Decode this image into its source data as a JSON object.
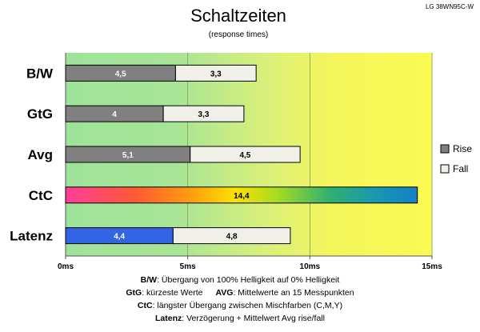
{
  "model": "LG 38WN95C-W",
  "chart_data": {
    "type": "bar",
    "orientation": "horizontal",
    "stacked": true,
    "title": "Schaltzeiten",
    "subtitle": "(response times)",
    "categories": [
      "B/W",
      "GtG",
      "Avg",
      "CtC",
      "Latenz"
    ],
    "series": [
      {
        "name": "Rise",
        "color": "#808080",
        "values": [
          4.5,
          4,
          5.1,
          14.4,
          4.4
        ],
        "labels": [
          "4,5",
          "4",
          "5,1",
          "14,4",
          "4,4"
        ]
      },
      {
        "name": "Fall",
        "color": "#f0efe8",
        "values": [
          3.3,
          3.3,
          4.5,
          0,
          4.8
        ],
        "labels": [
          "3,3",
          "3,3",
          "4,5",
          "",
          "4,8"
        ]
      }
    ],
    "special_bars": {
      "CtC": "rainbow",
      "Latenz": "blue"
    },
    "xlim": [
      0,
      15
    ],
    "xticks": [
      0,
      5,
      10,
      15
    ],
    "xtick_labels": [
      "0ms",
      "5ms",
      "10ms",
      "15ms"
    ],
    "legend_position": "right",
    "grid": true,
    "background": "green-to-yellow gradient"
  },
  "footnotes": {
    "bw_key": "B/W",
    "bw_text": ":  Übergang von 100% Helligkeit auf 0% Helligkeit",
    "gtg_key": "GtG",
    "gtg_text": ": kürzeste  Werte",
    "avg_key": "AVG",
    "avg_text": ": Mittelwerte  an 15 Messpunkten",
    "ctc_key": "CtC",
    "ctc_text": ": längster Übergang  zwischen Mischfarben (C,M,Y)",
    "latenz_key": "Latenz",
    "latenz_text": ": Verzögerung  + Mittelwert Avg rise/fall"
  }
}
